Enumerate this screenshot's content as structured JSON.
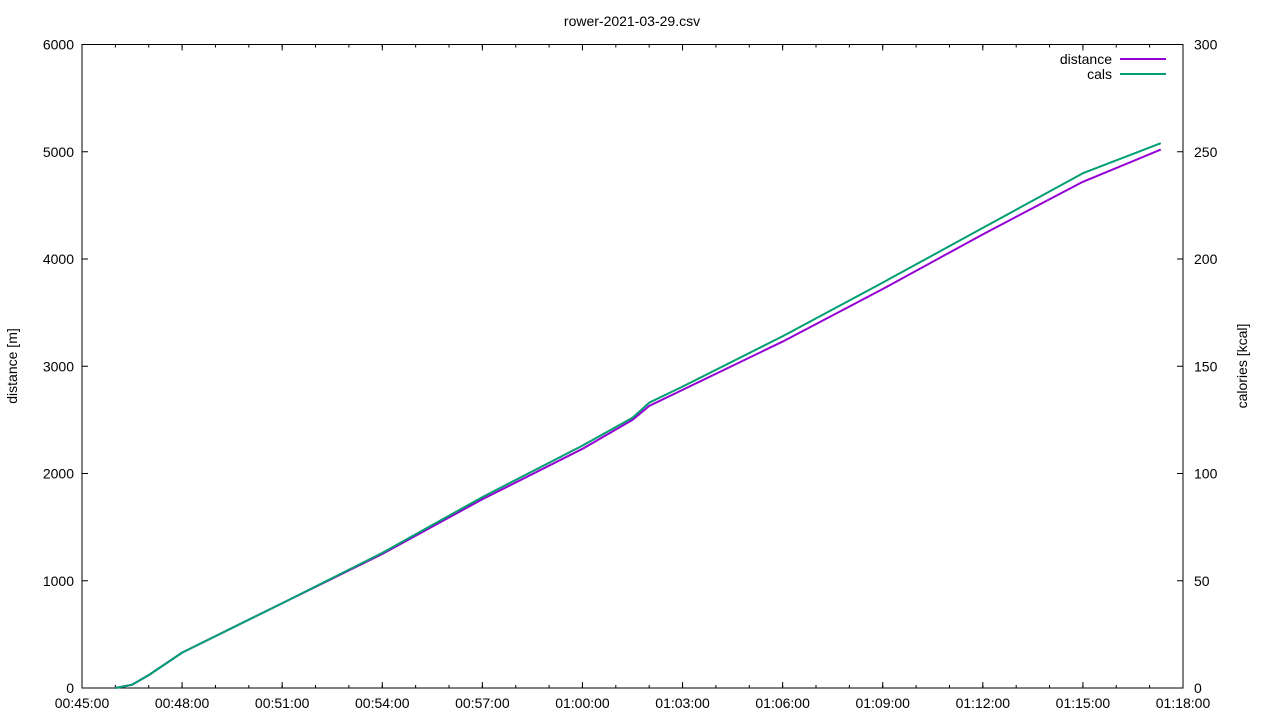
{
  "chart_data": {
    "type": "line",
    "title": "rower-2021-03-29.csv",
    "xlabel": "",
    "ylabel": "distance [m]",
    "y2label": "calories [kcal]",
    "x_ticks": [
      "00:45:00",
      "00:48:00",
      "00:51:00",
      "00:54:00",
      "00:57:00",
      "01:00:00",
      "01:03:00",
      "01:06:00",
      "01:09:00",
      "01:12:00",
      "01:15:00",
      "01:18:00"
    ],
    "y_ticks": [
      "0",
      "1000",
      "2000",
      "3000",
      "4000",
      "5000",
      "6000"
    ],
    "y2_ticks": [
      "0",
      "50",
      "100",
      "150",
      "200",
      "250",
      "300"
    ],
    "xlim": [
      "00:45:00",
      "01:18:00"
    ],
    "ylim": [
      0,
      6000
    ],
    "y2lim": [
      0,
      300
    ],
    "grid": false,
    "legend_position": "top-right",
    "series": [
      {
        "name": "distance",
        "axis": "y",
        "color": "#9400d3",
        "x": [
          "00:46:00",
          "00:46:30",
          "00:47:00",
          "00:48:00",
          "00:51:00",
          "00:54:00",
          "00:57:00",
          "01:00:00",
          "01:01:30",
          "01:02:00",
          "01:03:00",
          "01:06:00",
          "01:09:00",
          "01:12:00",
          "01:15:00",
          "01:17:20"
        ],
        "values": [
          0,
          30,
          120,
          330,
          790,
          1250,
          1760,
          2230,
          2500,
          2630,
          2780,
          3230,
          3720,
          4230,
          4720,
          5020
        ]
      },
      {
        "name": "cals",
        "axis": "y2",
        "color": "#009e73",
        "x": [
          "00:46:00",
          "00:46:30",
          "00:47:00",
          "00:48:00",
          "00:51:00",
          "00:54:00",
          "00:57:00",
          "01:00:00",
          "01:01:30",
          "01:02:00",
          "01:03:00",
          "01:06:00",
          "01:09:00",
          "01:12:00",
          "01:15:00",
          "01:17:20"
        ],
        "values": [
          0,
          1.5,
          6,
          16.5,
          39.5,
          63,
          89,
          113,
          126,
          133,
          140.5,
          164,
          189,
          214.5,
          240,
          254
        ]
      }
    ]
  }
}
